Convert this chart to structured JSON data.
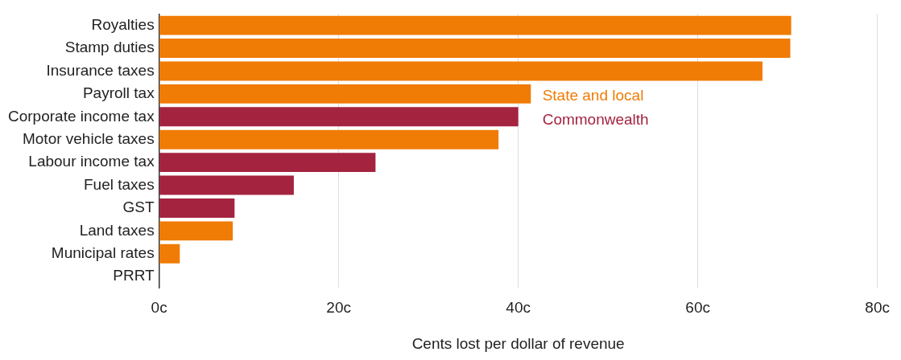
{
  "chart_data": {
    "type": "bar",
    "orientation": "horizontal",
    "xlabel": "Cents lost per dollar of revenue",
    "categories": [
      "Royalties",
      "Stamp duties",
      "Insurance taxes",
      "Payroll tax",
      "Corporate income tax",
      "Motor vehicle taxes",
      "Labour income tax",
      "Fuel taxes",
      "GST",
      "Land taxes",
      "Municipal rates",
      "PRRT"
    ],
    "series": [
      {
        "name": "State and local",
        "color": "#f07b05",
        "values": [
          70.4,
          70.3,
          67.2,
          41.4,
          null,
          37.8,
          null,
          null,
          null,
          8.2,
          2.3,
          null
        ]
      },
      {
        "name": "Commonwealth",
        "color": "#a4233f",
        "values": [
          null,
          null,
          null,
          null,
          40.0,
          null,
          24.1,
          15.0,
          8.4,
          null,
          null,
          0
        ]
      }
    ],
    "xlim": [
      0,
      80
    ],
    "xticks": [
      {
        "value": 0,
        "label": "0c"
      },
      {
        "value": 20,
        "label": "20c"
      },
      {
        "value": 40,
        "label": "40c"
      },
      {
        "value": 60,
        "label": "60c"
      },
      {
        "value": 80,
        "label": "80c"
      }
    ],
    "grid": "x",
    "legend": "center"
  }
}
